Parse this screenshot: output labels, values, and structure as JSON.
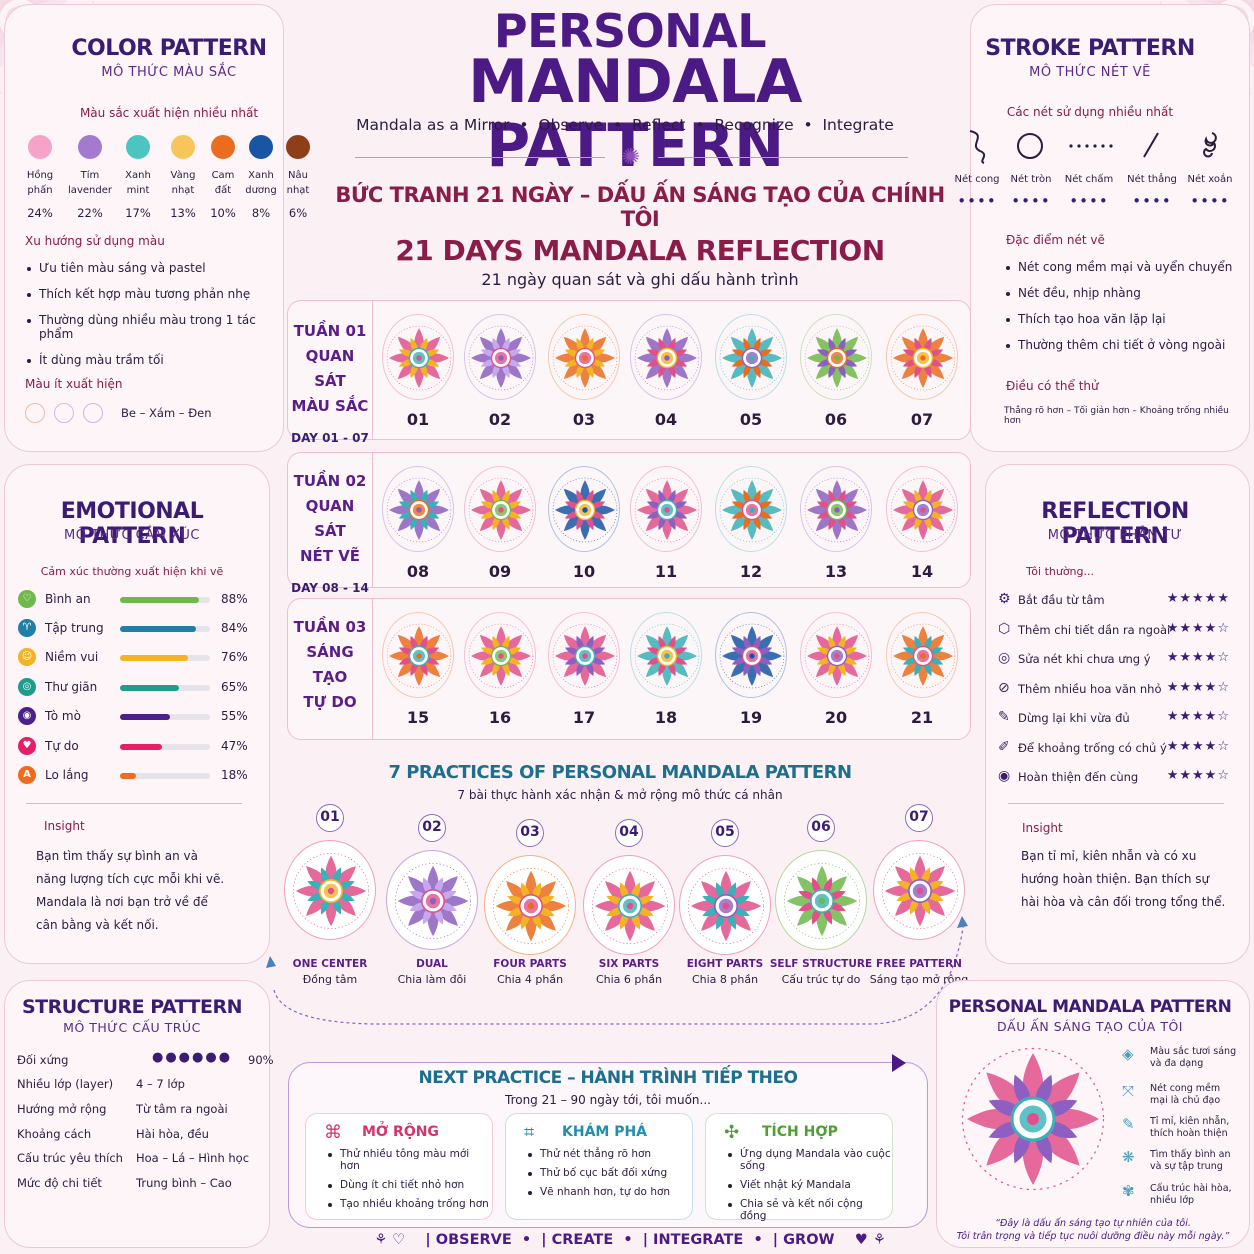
{
  "header": {
    "title_line1": "PERSONAL",
    "title_line2": "MANDALA PATTERN",
    "tagline": [
      "Mandala as a Mirror",
      "Observe",
      "Reflect",
      "Recognize",
      "Integrate"
    ],
    "subtitle": "BỨC TRANH 21 NGÀY – DẤU ẤN SÁNG TẠO CỦA CHÍNH TÔI",
    "section_title": "21 DAYS MANDALA REFLECTION",
    "section_sub": "21 ngày quan sát và ghi dấu hành trình"
  },
  "color_pattern": {
    "title": "COLOR PATTERN",
    "subtitle": "MÔ THỨC MÀU SẮC",
    "heading": "Màu sắc xuất hiện nhiều nhất",
    "swatches": [
      {
        "name1": "Hồng",
        "name2": "phấn",
        "pct": "24%",
        "color": "#f6a3c9"
      },
      {
        "name1": "Tím",
        "name2": "lavender",
        "pct": "22%",
        "color": "#a47ad1"
      },
      {
        "name1": "Xanh",
        "name2": "mint",
        "pct": "17%",
        "color": "#4cc5c0"
      },
      {
        "name1": "Vàng",
        "name2": "nhạt",
        "pct": "13%",
        "color": "#f7c55a"
      },
      {
        "name1": "Cam",
        "name2": "đất",
        "pct": "10%",
        "color": "#ea6c1e"
      },
      {
        "name1": "Xanh",
        "name2": "dương",
        "pct": "8%",
        "color": "#1855a4"
      },
      {
        "name1": "Nâu",
        "name2": "nhạt",
        "pct": "6%",
        "color": "#8d3f1a"
      }
    ],
    "trend_heading": "Xu hướng sử dụng màu",
    "trends": [
      "Ưu tiên màu sáng và pastel",
      "Thích kết hợp màu tương phản nhẹ",
      "Thường dùng nhiều màu trong 1 tác phẩm",
      "Ít dùng màu trầm tối"
    ],
    "rare_heading": "Màu ít xuất hiện",
    "rare_text": "Be – Xám – Đen"
  },
  "stroke_pattern": {
    "title": "STROKE PATTERN",
    "subtitle": "MÔ THỨC NÉT VẼ",
    "heading": "Các nét sử dụng nhiều nhất",
    "strokes": [
      "Nét cong",
      "Nét tròn",
      "Nét chấm",
      "Nét thẳng",
      "Nét xoắn"
    ],
    "stroke_dots": [
      4,
      4,
      4,
      4,
      4
    ],
    "feature_heading": "Đặc điểm nét vẽ",
    "features": [
      "Nét cong mềm mại và uyển chuyển",
      "Nét đều, nhịp nhàng",
      "Thích tạo hoa văn lặp lại",
      "Thường thêm chi tiết ở vòng ngoài"
    ],
    "try_heading": "Điều có thể thử",
    "try_text": "Thẳng rõ hơn – Tối giản hơn – Khoảng trống nhiều hơn"
  },
  "weeks": [
    {
      "label": [
        "TUẦN 01",
        "QUAN SÁT",
        "MÀU SẮC"
      ],
      "days_label": "DAY 01 - 07",
      "days": [
        "01",
        "02",
        "03",
        "04",
        "05",
        "06",
        "07"
      ]
    },
    {
      "label": [
        "TUẦN 02",
        "QUAN SÁT",
        "NÉT VẼ"
      ],
      "days_label": "DAY 08 - 14",
      "days": [
        "08",
        "09",
        "10",
        "11",
        "12",
        "13",
        "14"
      ]
    },
    {
      "label": [
        "TUẦN 03",
        "SÁNG TẠO",
        "TỰ DO"
      ],
      "days_label": "",
      "days": [
        "15",
        "16",
        "17",
        "18",
        "19",
        "20",
        "21"
      ]
    }
  ],
  "emotional_pattern": {
    "title": "EMOTIONAL PATTERN",
    "subtitle": "MÔ THỨC CẢM XÚC",
    "heading": "Cảm xúc thường xuất hiện khi vẽ",
    "rows": [
      {
        "label": "Bình an",
        "pct": "88%",
        "value": 88,
        "color": "#6fb84a"
      },
      {
        "label": "Tập trung",
        "pct": "84%",
        "value": 84,
        "color": "#1f7fa8"
      },
      {
        "label": "Niềm vui",
        "pct": "76%",
        "value": 76,
        "color": "#f4b323"
      },
      {
        "label": "Thư giãn",
        "pct": "65%",
        "value": 65,
        "color": "#1f9c8c"
      },
      {
        "label": "Tò mò",
        "pct": "55%",
        "value": 55,
        "color": "#4d1f8a"
      },
      {
        "label": "Tự do",
        "pct": "47%",
        "value": 47,
        "color": "#e51f67"
      },
      {
        "label": "Lo lắng",
        "pct": "18%",
        "value": 18,
        "color": "#f26a1b"
      }
    ],
    "insight_heading": "Insight",
    "insight": "Bạn tìm thấy sự bình an và năng lượng tích cực mỗi khi vẽ. Mandala là nơi bạn trở về để cân bằng và kết nối."
  },
  "reflection_pattern": {
    "title": "REFLECTION PATTERN",
    "subtitle": "MÔ THỨC PHẢN TƯ",
    "heading": "Tôi thường...",
    "rows": [
      {
        "label": "Bắt đầu từ tâm",
        "stars": 5
      },
      {
        "label": "Thêm chi tiết dần ra ngoài",
        "stars": 4
      },
      {
        "label": "Sửa nét khi chưa ưng ý",
        "stars": 4
      },
      {
        "label": "Thêm nhiều hoa văn nhỏ",
        "stars": 4
      },
      {
        "label": "Dừng lại khi vừa đủ",
        "stars": 4
      },
      {
        "label": "Để khoảng trống có chủ ý",
        "stars": 4
      },
      {
        "label": "Hoàn thiện đến cùng",
        "stars": 4
      }
    ],
    "insight_heading": "Insight",
    "insight": "Bạn tỉ mỉ, kiên nhẫn và có xu hướng hoàn thiện. Bạn thích sự hài hòa và cân đối trong tổng thể."
  },
  "practices": {
    "title": "7 PRACTICES OF PERSONAL MANDALA PATTERN",
    "subtitle": "7 bài thực hành xác nhận & mở rộng mô thức cá nhân",
    "items": [
      {
        "num": "01",
        "name": "ONE CENTER",
        "desc": "Đồng tâm"
      },
      {
        "num": "02",
        "name": "DUAL",
        "desc": "Chia làm đôi"
      },
      {
        "num": "03",
        "name": "FOUR PARTS",
        "desc": "Chia 4 phần"
      },
      {
        "num": "04",
        "name": "SIX PARTS",
        "desc": "Chia 6 phần"
      },
      {
        "num": "05",
        "name": "EIGHT PARTS",
        "desc": "Chia 8 phần"
      },
      {
        "num": "06",
        "name": "SELF STRUCTURE",
        "desc": "Cấu trúc tự do"
      },
      {
        "num": "07",
        "name": "FREE PATTERN",
        "desc": "Sáng tạo mở rộng"
      }
    ]
  },
  "structure_pattern": {
    "title": "STRUCTURE PATTERN",
    "subtitle": "MÔ THỨC CẤU TRÚC",
    "rows": [
      {
        "key": "Đối xứng",
        "value": "90%",
        "dots": 6
      },
      {
        "key": "Nhiều lớp (layer)",
        "value": "4 – 7 lớp"
      },
      {
        "key": "Hướng mở rộng",
        "value": "Từ tâm ra ngoài"
      },
      {
        "key": "Khoảng cách",
        "value": "Hài hòa, đều"
      },
      {
        "key": "Cấu trúc yêu thích",
        "value": "Hoa – Lá – Hình học"
      },
      {
        "key": "Mức độ chi tiết",
        "value": "Trung bình – Cao"
      }
    ]
  },
  "next_practice": {
    "title": "NEXT PRACTICE – HÀNH TRÌNH TIẾP THEO",
    "subtitle": "Trong 21 – 90 ngày tới, tôi muốn...",
    "boxes": [
      {
        "title": "MỞ RỘNG",
        "color": "#d6336c",
        "items": [
          "Thử nhiều tông màu mới hơn",
          "Dùng ít chi tiết nhỏ hơn",
          "Tạo nhiều khoảng trống hơn"
        ]
      },
      {
        "title": "KHÁM PHÁ",
        "color": "#1f8fb0",
        "items": [
          "Thử nét thẳng rõ hơn",
          "Thử bố cục bất đối xứng",
          "Vẽ nhanh hơn, tự do hơn"
        ]
      },
      {
        "title": "TÍCH HỢP",
        "color": "#4e9e34",
        "items": [
          "Ứng dụng Mandala vào cuộc sống",
          "Viết nhật ký Mandala",
          "Chia sẻ và kết nối cộng đồng"
        ]
      }
    ]
  },
  "personal_summary": {
    "title": "PERSONAL MANDALA PATTERN",
    "subtitle": "DẤU ẤN SÁNG TẠO CỦA TÔI",
    "items": [
      "Màu sắc tươi sáng và đa dạng",
      "Nét cong mềm mại là chủ đạo",
      "Tỉ mỉ, kiên nhẫn, thích hoàn thiện",
      "Tìm thấy bình an và sự tập trung",
      "Cấu trúc hài hòa, nhiều lớp"
    ],
    "quote1": "“Đây là dấu ấn sáng tạo tự nhiên của tôi.",
    "quote2": "Tôi trân trọng và tiếp tục nuôi dưỡng điều này mỗi ngày.”"
  },
  "footer": [
    "OBSERVE",
    "CREATE",
    "INTEGRATE",
    "GROW"
  ]
}
